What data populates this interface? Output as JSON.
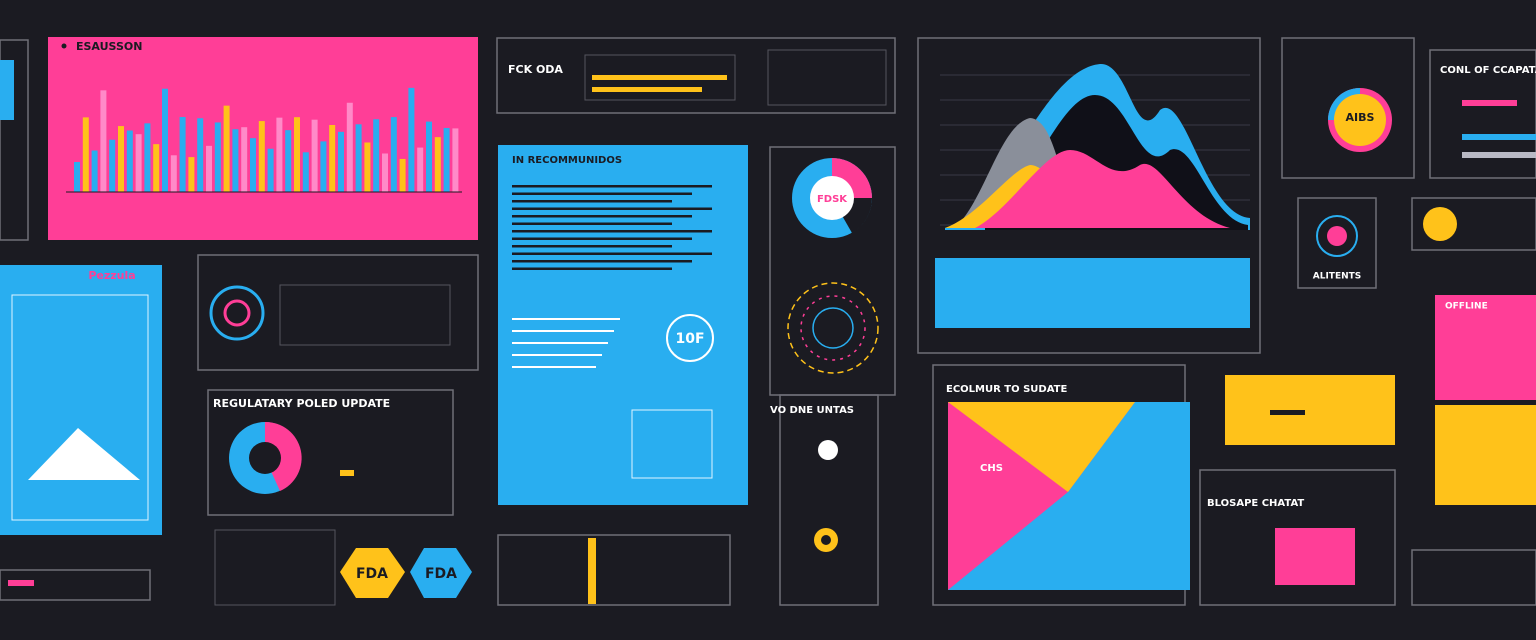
{
  "analytics_panel": {
    "title": "ESAUSSON"
  },
  "funding_panel": {
    "title": "FCK ODA"
  },
  "recommendation_panel": {
    "title": "IN RECOMMUNIDOS",
    "badge": "10F"
  },
  "risk_donut": {
    "label": "FDSK"
  },
  "regulatory_panel": {
    "title": "REGULATARY POLED UPDATE"
  },
  "badges": [
    "FDA",
    "FDA"
  ],
  "summary_panel": {
    "title": "ECOLMUR TO SUDATE",
    "label": "CHS"
  },
  "capacity_panel": {
    "title": "CONL OF CCAPATA",
    "donut_label": "AIBS"
  },
  "alerts_panel": {
    "title": "ALITENTS"
  },
  "units_panel": {
    "title": "VO DNE UNTAS"
  },
  "storage_panel": {
    "title": "BLOSAPE CHATAT"
  },
  "side_panel": {
    "title": "Pezzula"
  },
  "offline_panel": {
    "title": "OFFLINE"
  }
}
